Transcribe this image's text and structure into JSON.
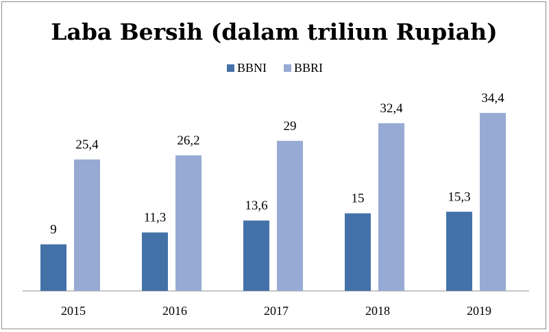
{
  "chart_data": {
    "type": "bar",
    "title": "Laba Bersih (dalam triliun Rupiah)",
    "xlabel": "",
    "ylabel": "",
    "categories": [
      "2015",
      "2016",
      "2017",
      "2018",
      "2019"
    ],
    "series": [
      {
        "name": "BBNI",
        "values": [
          9,
          11.3,
          13.6,
          15,
          15.3
        ],
        "labels": [
          "9",
          "11,3",
          "13,6",
          "15",
          "15,3"
        ],
        "color": "#4472a8"
      },
      {
        "name": "BBRI",
        "values": [
          25.4,
          26.2,
          29,
          32.4,
          34.4
        ],
        "labels": [
          "25,4",
          "26,2",
          "29",
          "32,4",
          "34,4"
        ],
        "color": "#97aad3"
      }
    ],
    "ylim": [
      0,
      40
    ],
    "grid": false,
    "legend_position": "top"
  }
}
